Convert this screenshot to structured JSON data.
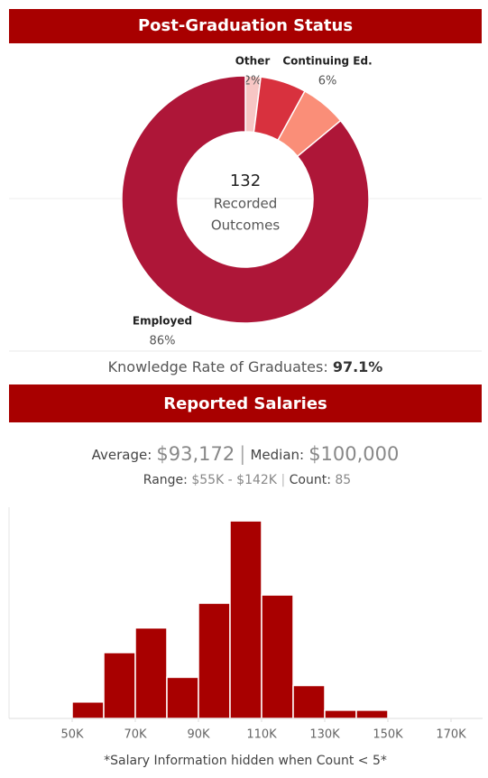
{
  "chart_data": [
    {
      "type": "pie",
      "title": "Post-Graduation Status",
      "hole": true,
      "categories": [
        "Other",
        null,
        "Continuing Ed.",
        "Employed"
      ],
      "values": [
        2,
        6,
        6,
        86
      ],
      "value_labels": [
        "2%",
        null,
        "6%",
        "86%"
      ],
      "colors": [
        "#f7c6c4",
        "#d8313e",
        "#fa8e78",
        "#ae1638"
      ],
      "center_value": 132,
      "center_label": [
        "Recorded",
        "Outcomes"
      ]
    },
    {
      "type": "histogram",
      "title": "Reported Salaries",
      "bins": [
        50000,
        60000,
        70000,
        80000,
        90000,
        100000,
        110000,
        120000,
        130000,
        140000,
        150000
      ],
      "counts": [
        2,
        8,
        11,
        5,
        14,
        24,
        15,
        4,
        1,
        1
      ],
      "color": "#a80000",
      "xlim": [
        30000,
        180000
      ],
      "ylim": [
        0,
        25
      ],
      "xticks": [
        {
          "value": 50000,
          "label": "50K"
        },
        {
          "value": 70000,
          "label": "70K"
        },
        {
          "value": 90000,
          "label": "90K"
        },
        {
          "value": 110000,
          "label": "110K"
        },
        {
          "value": 130000,
          "label": "130K"
        },
        {
          "value": 150000,
          "label": "150K"
        },
        {
          "value": 170000,
          "label": "170K"
        }
      ],
      "grid": false
    }
  ],
  "knowledge_rate": {
    "label": "Knowledge Rate of Graduates:",
    "value": "97.1%"
  },
  "salary_summary": {
    "average_label": "Average:",
    "average": "$93,172",
    "separator": "|",
    "median_label": "Median:",
    "median": "$100,000",
    "range_label": "Range:",
    "range": "$55K - $142K",
    "count_label": "Count:",
    "count": "85"
  },
  "footnote": "*Salary Information hidden when Count < 5*"
}
